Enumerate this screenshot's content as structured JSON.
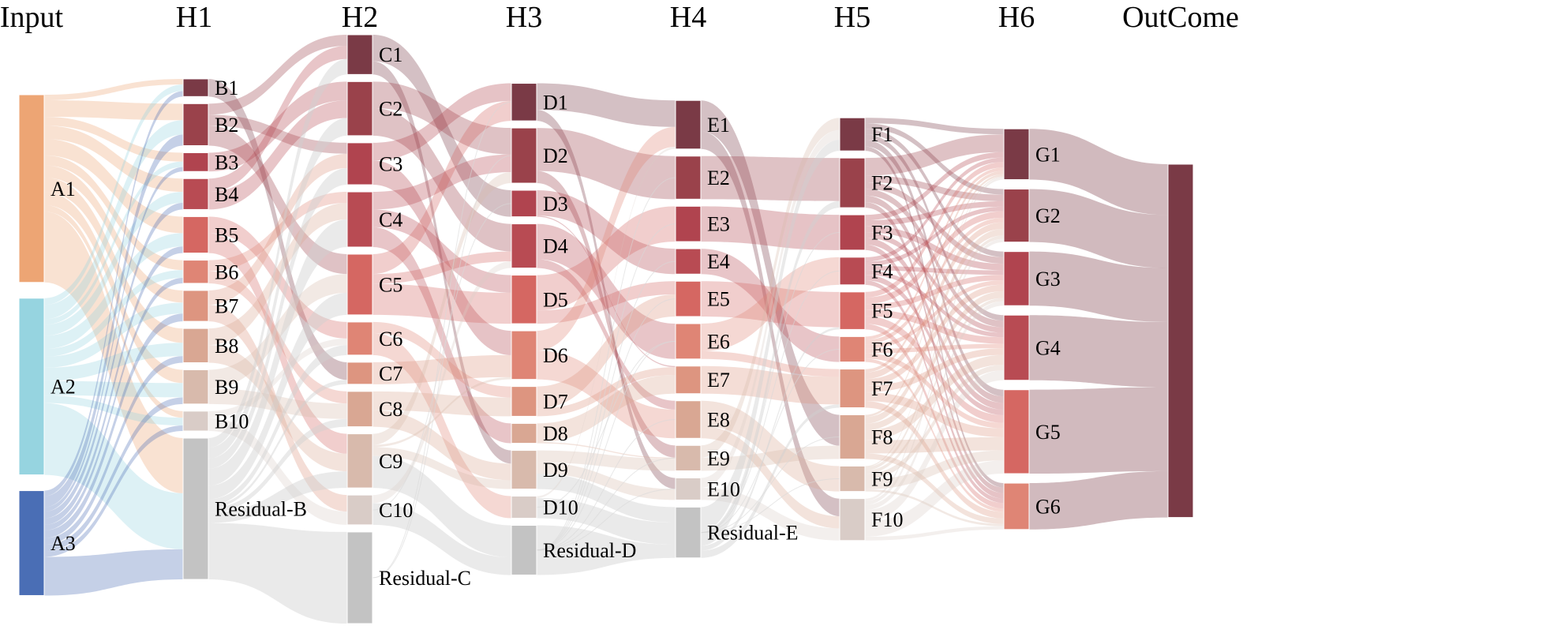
{
  "columns": [
    {
      "id": "input",
      "title": "Input",
      "nodes": [
        {
          "id": "A1",
          "label": "A1",
          "value": 17,
          "color": "#EDA574"
        },
        {
          "id": "A2",
          "label": "A2",
          "value": 16,
          "color": "#96D4E0"
        },
        {
          "id": "A3",
          "label": "A3",
          "value": 9.5,
          "color": "#4A6EB5"
        }
      ]
    },
    {
      "id": "h1",
      "title": "H1",
      "nodes": [
        {
          "id": "B1",
          "label": "B1",
          "value": 1.6,
          "color": "#7A3A46"
        },
        {
          "id": "B2",
          "label": "B2",
          "value": 3.8,
          "color": "#9A424B"
        },
        {
          "id": "B3",
          "label": "B3",
          "value": 1.7,
          "color": "#B0444F"
        },
        {
          "id": "B4",
          "label": "B4",
          "value": 2.8,
          "color": "#B84B53"
        },
        {
          "id": "B5",
          "label": "B5",
          "value": 3.3,
          "color": "#D56762"
        },
        {
          "id": "B6",
          "label": "B6",
          "value": 2.1,
          "color": "#DF8575"
        },
        {
          "id": "B7",
          "label": "B7",
          "value": 2.8,
          "color": "#DD9580"
        },
        {
          "id": "B8",
          "label": "B8",
          "value": 3.1,
          "color": "#D9A793"
        },
        {
          "id": "B9",
          "label": "B9",
          "value": 3.1,
          "color": "#D8BAAC"
        },
        {
          "id": "B10",
          "label": "B10",
          "value": 1.8,
          "color": "#D9CCC7"
        },
        {
          "id": "ResB",
          "label": "Residual-B",
          "value": 12.8,
          "color": "#C3C3C3"
        }
      ]
    },
    {
      "id": "h2",
      "title": "H2",
      "nodes": [
        {
          "id": "C1",
          "label": "C1",
          "value": 3.6,
          "color": "#7A3A46"
        },
        {
          "id": "C2",
          "label": "C2",
          "value": 4.9,
          "color": "#9A424B"
        },
        {
          "id": "C3",
          "label": "C3",
          "value": 3.8,
          "color": "#B0444F"
        },
        {
          "id": "C4",
          "label": "C4",
          "value": 5.0,
          "color": "#B84B53"
        },
        {
          "id": "C5",
          "label": "C5",
          "value": 5.5,
          "color": "#D56762"
        },
        {
          "id": "C6",
          "label": "C6",
          "value": 3.0,
          "color": "#DF8575"
        },
        {
          "id": "C7",
          "label": "C7",
          "value": 2.0,
          "color": "#DD9580"
        },
        {
          "id": "C8",
          "label": "C8",
          "value": 3.2,
          "color": "#D9A793"
        },
        {
          "id": "C9",
          "label": "C9",
          "value": 4.9,
          "color": "#D8BAAC"
        },
        {
          "id": "C10",
          "label": "C10",
          "value": 2.7,
          "color": "#D9CCC7"
        },
        {
          "id": "ResC",
          "label": "Residual-C",
          "value": 8.3,
          "color": "#C3C3C3"
        }
      ]
    },
    {
      "id": "h3",
      "title": "H3",
      "nodes": [
        {
          "id": "D1",
          "label": "D1",
          "value": 3.4,
          "color": "#7A3A46"
        },
        {
          "id": "D2",
          "label": "D2",
          "value": 5.0,
          "color": "#9A424B"
        },
        {
          "id": "D3",
          "label": "D3",
          "value": 2.4,
          "color": "#B0444F"
        },
        {
          "id": "D4",
          "label": "D4",
          "value": 4.0,
          "color": "#B84B53"
        },
        {
          "id": "D5",
          "label": "D5",
          "value": 4.4,
          "color": "#D56762"
        },
        {
          "id": "D6",
          "label": "D6",
          "value": 4.4,
          "color": "#DF8575"
        },
        {
          "id": "D7",
          "label": "D7",
          "value": 2.7,
          "color": "#DD9580"
        },
        {
          "id": "D8",
          "label": "D8",
          "value": 1.8,
          "color": "#D9A793"
        },
        {
          "id": "D9",
          "label": "D9",
          "value": 3.5,
          "color": "#D8BAAC"
        },
        {
          "id": "D10",
          "label": "D10",
          "value": 2.0,
          "color": "#D9CCC7"
        },
        {
          "id": "ResD",
          "label": "Residual-D",
          "value": 4.5,
          "color": "#C3C3C3"
        }
      ]
    },
    {
      "id": "h4",
      "title": "H4",
      "nodes": [
        {
          "id": "E1",
          "label": "E1",
          "value": 4.4,
          "color": "#7A3A46"
        },
        {
          "id": "E2",
          "label": "E2",
          "value": 3.9,
          "color": "#9A424B"
        },
        {
          "id": "E3",
          "label": "E3",
          "value": 3.2,
          "color": "#B0444F"
        },
        {
          "id": "E4",
          "label": "E4",
          "value": 2.3,
          "color": "#B84B53"
        },
        {
          "id": "E5",
          "label": "E5",
          "value": 3.2,
          "color": "#D56762"
        },
        {
          "id": "E6",
          "label": "E6",
          "value": 3.2,
          "color": "#DF8575"
        },
        {
          "id": "E7",
          "label": "E7",
          "value": 2.5,
          "color": "#DD9580"
        },
        {
          "id": "E8",
          "label": "E8",
          "value": 3.4,
          "color": "#D9A793"
        },
        {
          "id": "E9",
          "label": "E9",
          "value": 2.3,
          "color": "#D8BAAC"
        },
        {
          "id": "E10",
          "label": "E10",
          "value": 2.0,
          "color": "#D9CCC7"
        },
        {
          "id": "ResE",
          "label": "Residual-E",
          "value": 4.6,
          "color": "#C3C3C3"
        }
      ]
    },
    {
      "id": "h5",
      "title": "H5",
      "nodes": [
        {
          "id": "F1",
          "label": "F1",
          "value": 3.0,
          "color": "#7A3A46"
        },
        {
          "id": "F2",
          "label": "F2",
          "value": 4.5,
          "color": "#9A424B"
        },
        {
          "id": "F3",
          "label": "F3",
          "value": 3.2,
          "color": "#B0444F"
        },
        {
          "id": "F4",
          "label": "F4",
          "value": 2.5,
          "color": "#B84B53"
        },
        {
          "id": "F5",
          "label": "F5",
          "value": 3.4,
          "color": "#D56762"
        },
        {
          "id": "F6",
          "label": "F6",
          "value": 2.3,
          "color": "#DF8575"
        },
        {
          "id": "F7",
          "label": "F7",
          "value": 3.5,
          "color": "#DD9580"
        },
        {
          "id": "F8",
          "label": "F8",
          "value": 4.0,
          "color": "#D9A793"
        },
        {
          "id": "F9",
          "label": "F9",
          "value": 2.3,
          "color": "#D8BAAC"
        },
        {
          "id": "F10",
          "label": "F10",
          "value": 3.8,
          "color": "#D9CCC7"
        }
      ]
    },
    {
      "id": "h6",
      "title": "H6",
      "nodes": [
        {
          "id": "G1",
          "label": "G1",
          "value": 4.6,
          "color": "#7A3A46"
        },
        {
          "id": "G2",
          "label": "G2",
          "value": 4.8,
          "color": "#9A424B"
        },
        {
          "id": "G3",
          "label": "G3",
          "value": 4.9,
          "color": "#B0444F"
        },
        {
          "id": "G4",
          "label": "G4",
          "value": 5.9,
          "color": "#B84B53"
        },
        {
          "id": "G5",
          "label": "G5",
          "value": 7.6,
          "color": "#D56762"
        },
        {
          "id": "G6",
          "label": "G6",
          "value": 4.2,
          "color": "#DF8575"
        }
      ]
    },
    {
      "id": "outcome",
      "title": "OutCome",
      "nodes": [
        {
          "id": "OUT",
          "label": "",
          "value": 32,
          "color": "#7A3A46"
        }
      ]
    }
  ],
  "links": [
    [
      "A1",
      "B1",
      0.5
    ],
    [
      "A1",
      "B2",
      1.5
    ],
    [
      "A1",
      "B3",
      0.8
    ],
    [
      "A1",
      "B4",
      1.2
    ],
    [
      "A1",
      "B5",
      1.5
    ],
    [
      "A1",
      "B6",
      0.9
    ],
    [
      "A1",
      "B7",
      1.1
    ],
    [
      "A1",
      "B8",
      1.3
    ],
    [
      "A1",
      "B9",
      1.2
    ],
    [
      "A1",
      "B10",
      0.6
    ],
    [
      "A1",
      "ResB",
      6.4
    ],
    [
      "A2",
      "B1",
      0.6
    ],
    [
      "A2",
      "B2",
      1.3
    ],
    [
      "A2",
      "B3",
      0.5
    ],
    [
      "A2",
      "B4",
      1.0
    ],
    [
      "A2",
      "B5",
      1.2
    ],
    [
      "A2",
      "B6",
      0.7
    ],
    [
      "A2",
      "B7",
      1.0
    ],
    [
      "A2",
      "B8",
      1.2
    ],
    [
      "A2",
      "B9",
      1.3
    ],
    [
      "A2",
      "B10",
      0.7
    ],
    [
      "A2",
      "ResB",
      6.5
    ],
    [
      "A3",
      "B1",
      0.5
    ],
    [
      "A3",
      "B2",
      1.0
    ],
    [
      "A3",
      "B3",
      0.4
    ],
    [
      "A3",
      "B4",
      0.6
    ],
    [
      "A3",
      "B5",
      0.6
    ],
    [
      "A3",
      "B6",
      0.5
    ],
    [
      "A3",
      "B7",
      0.7
    ],
    [
      "A3",
      "B8",
      0.6
    ],
    [
      "A3",
      "B9",
      0.6
    ],
    [
      "A3",
      "B10",
      0.5
    ],
    [
      "A3",
      "ResB",
      3.5
    ],
    [
      "B1",
      "C7",
      1.6
    ],
    [
      "B2",
      "C1",
      1.0
    ],
    [
      "B2",
      "C5",
      1.8
    ],
    [
      "B2",
      "C3",
      1.0
    ],
    [
      "B3",
      "C2",
      1.7
    ],
    [
      "B4",
      "C2",
      1.6
    ],
    [
      "B4",
      "C1",
      1.2
    ],
    [
      "B5",
      "C6",
      1.5
    ],
    [
      "B5",
      "C9",
      1.8
    ],
    [
      "B6",
      "C8",
      1.1
    ],
    [
      "B6",
      "C4",
      1.0
    ],
    [
      "B7",
      "C3",
      1.3
    ],
    [
      "B7",
      "C10",
      1.5
    ],
    [
      "B8",
      "C4",
      1.5
    ],
    [
      "B8",
      "C9",
      1.6
    ],
    [
      "B9",
      "C5",
      1.7
    ],
    [
      "B9",
      "C8",
      1.4
    ],
    [
      "B10",
      "C10",
      1.2
    ],
    [
      "B10",
      "C6",
      0.6
    ],
    [
      "ResB",
      "C1",
      1.4
    ],
    [
      "ResB",
      "C2",
      1.6
    ],
    [
      "ResB",
      "C3",
      1.5
    ],
    [
      "ResB",
      "C4",
      2.5
    ],
    [
      "ResB",
      "C5",
      2.0
    ],
    [
      "ResB",
      "C6",
      0.9
    ],
    [
      "ResB",
      "C7",
      0.4
    ],
    [
      "ResB",
      "C8",
      0.7
    ],
    [
      "ResB",
      "C9",
      1.5
    ],
    [
      "ResB",
      "ResC",
      8.3
    ],
    [
      "C1",
      "D3",
      2.4
    ],
    [
      "C1",
      "D9",
      1.2
    ],
    [
      "C2",
      "D4",
      2.5
    ],
    [
      "C2",
      "D2",
      2.4
    ],
    [
      "C3",
      "D6",
      2.2
    ],
    [
      "C3",
      "D1",
      1.6
    ],
    [
      "C4",
      "D8",
      1.8
    ],
    [
      "C4",
      "D5",
      1.6
    ],
    [
      "C4",
      "D2",
      1.6
    ],
    [
      "C5",
      "D1",
      1.8
    ],
    [
      "C5",
      "D5",
      2.8
    ],
    [
      "C5",
      "D4",
      0.9
    ],
    [
      "C6",
      "D10",
      2.0
    ],
    [
      "C6",
      "D7",
      1.0
    ],
    [
      "C7",
      "D6",
      2.0
    ],
    [
      "C8",
      "D7",
      1.7
    ],
    [
      "C8",
      "D9",
      1.5
    ],
    [
      "C9",
      "D9",
      0.8
    ],
    [
      "C9",
      "D6",
      0.2
    ],
    [
      "C9",
      "D2",
      1.0
    ],
    [
      "C9",
      "ResD",
      2.9
    ],
    [
      "C10",
      "D4",
      0.6
    ],
    [
      "C10",
      "ResD",
      1.6
    ],
    [
      "C10",
      "D3",
      0.0
    ],
    [
      "ResC",
      "D1",
      0.0
    ],
    [
      "ResC",
      "D2",
      0.0
    ],
    [
      "D1",
      "E1",
      2.4
    ],
    [
      "D1",
      "E10",
      1.0
    ],
    [
      "D2",
      "E2",
      3.9
    ],
    [
      "D2",
      "E9",
      1.1
    ],
    [
      "D3",
      "E4",
      2.3
    ],
    [
      "D3",
      "E7",
      0.1
    ],
    [
      "D4",
      "E6",
      3.2
    ],
    [
      "D4",
      "E8",
      0.8
    ],
    [
      "D5",
      "E3",
      3.2
    ],
    [
      "D5",
      "E5",
      1.2
    ],
    [
      "D6",
      "E8",
      2.6
    ],
    [
      "D6",
      "E1",
      1.8
    ],
    [
      "D7",
      "E5",
      2.0
    ],
    [
      "D7",
      "E7",
      0.7
    ],
    [
      "D8",
      "E7",
      1.7
    ],
    [
      "D8",
      "E9",
      0.1
    ],
    [
      "D9",
      "E10",
      1.0
    ],
    [
      "D9",
      "E9",
      1.1
    ],
    [
      "D9",
      "ResE",
      1.4
    ],
    [
      "D10",
      "ResE",
      2.0
    ],
    [
      "D10",
      "E1",
      0.2
    ],
    [
      "D10",
      "E6",
      0.0
    ],
    [
      "ResD",
      "ResE",
      1.2
    ],
    [
      "ResD",
      "E3",
      0.0
    ],
    [
      "ResD",
      "E5",
      0.0
    ],
    [
      "ResD",
      "E2",
      0.0
    ],
    [
      "ResD",
      "E10",
      0.0
    ],
    [
      "ResD",
      "E4",
      0.0
    ],
    [
      "ResD",
      "E6",
      0.0
    ],
    [
      "ResD",
      "E8",
      0.0
    ],
    [
      "ResD",
      "E9",
      0.0
    ],
    [
      "E1",
      "F8",
      2.8
    ],
    [
      "E1",
      "F10",
      1.6
    ],
    [
      "E2",
      "F2",
      3.9
    ],
    [
      "E3",
      "F3",
      3.2
    ],
    [
      "E4",
      "F6",
      2.3
    ],
    [
      "E5",
      "F5",
      3.2
    ],
    [
      "E6",
      "F4",
      2.5
    ],
    [
      "E6",
      "F7",
      0.7
    ],
    [
      "E7",
      "F7",
      2.5
    ],
    [
      "E8",
      "F9",
      2.3
    ],
    [
      "E8",
      "F10",
      1.1
    ],
    [
      "E9",
      "F8",
      1.2
    ],
    [
      "E9",
      "F1",
      1.1
    ],
    [
      "E10",
      "F10",
      1.1
    ],
    [
      "E10",
      "F1",
      0.9
    ],
    [
      "ResE",
      "F1",
      1.0
    ],
    [
      "ResE",
      "F2",
      0.6
    ],
    [
      "ResE",
      "F5",
      0.2
    ],
    [
      "ResE",
      "F7",
      0.3
    ],
    [
      "ResE",
      "F9",
      0.0
    ],
    [
      "ResE",
      "F6",
      0.0
    ],
    [
      "ResE",
      "F3",
      0.0
    ],
    [
      "ResE",
      "F4",
      0.0
    ],
    [
      "ResE",
      "F8",
      0.0
    ],
    [
      "F1",
      "G1",
      0.5
    ],
    [
      "F1",
      "G2",
      0.5
    ],
    [
      "F1",
      "G3",
      0.5
    ],
    [
      "F1",
      "G4",
      0.5
    ],
    [
      "F1",
      "G5",
      0.6
    ],
    [
      "F1",
      "G6",
      0.4
    ],
    [
      "F2",
      "G1",
      1.6
    ],
    [
      "F2",
      "G2",
      0.6
    ],
    [
      "F2",
      "G3",
      0.6
    ],
    [
      "F2",
      "G4",
      0.6
    ],
    [
      "F2",
      "G5",
      0.6
    ],
    [
      "F2",
      "G6",
      0.5
    ],
    [
      "F3",
      "G1",
      0.5
    ],
    [
      "F3",
      "G2",
      0.5
    ],
    [
      "F3",
      "G3",
      0.6
    ],
    [
      "F3",
      "G4",
      0.5
    ],
    [
      "F3",
      "G5",
      0.6
    ],
    [
      "F3",
      "G6",
      0.5
    ],
    [
      "F4",
      "G1",
      0.4
    ],
    [
      "F4",
      "G2",
      0.4
    ],
    [
      "F4",
      "G3",
      0.4
    ],
    [
      "F4",
      "G4",
      0.4
    ],
    [
      "F4",
      "G5",
      0.5
    ],
    [
      "F4",
      "G6",
      0.4
    ],
    [
      "F5",
      "G1",
      0.5
    ],
    [
      "F5",
      "G2",
      0.6
    ],
    [
      "F5",
      "G3",
      0.5
    ],
    [
      "F5",
      "G4",
      0.6
    ],
    [
      "F5",
      "G5",
      0.7
    ],
    [
      "F5",
      "G6",
      0.5
    ],
    [
      "F6",
      "G1",
      0.3
    ],
    [
      "F6",
      "G2",
      0.4
    ],
    [
      "F6",
      "G3",
      0.4
    ],
    [
      "F6",
      "G4",
      0.4
    ],
    [
      "F6",
      "G5",
      0.5
    ],
    [
      "F6",
      "G6",
      0.3
    ],
    [
      "F7",
      "G1",
      0.3
    ],
    [
      "F7",
      "G2",
      0.6
    ],
    [
      "F7",
      "G3",
      0.6
    ],
    [
      "F7",
      "G4",
      0.6
    ],
    [
      "F7",
      "G5",
      0.8
    ],
    [
      "F7",
      "G6",
      0.6
    ],
    [
      "F8",
      "G1",
      0.2
    ],
    [
      "F8",
      "G2",
      0.6
    ],
    [
      "F8",
      "G3",
      0.6
    ],
    [
      "F8",
      "G4",
      0.9
    ],
    [
      "F8",
      "G5",
      1.2
    ],
    [
      "F8",
      "G6",
      0.5
    ],
    [
      "F9",
      "G1",
      0.1
    ],
    [
      "F9",
      "G2",
      0.3
    ],
    [
      "F9",
      "G3",
      0.3
    ],
    [
      "F9",
      "G4",
      0.5
    ],
    [
      "F9",
      "G5",
      0.9
    ],
    [
      "F9",
      "G6",
      0.2
    ],
    [
      "F10",
      "G1",
      0.2
    ],
    [
      "F10",
      "G2",
      0.3
    ],
    [
      "F10",
      "G3",
      0.4
    ],
    [
      "F10",
      "G4",
      0.9
    ],
    [
      "F10",
      "G5",
      1.2
    ],
    [
      "F10",
      "G6",
      0.3
    ],
    [
      "G1",
      "OUT",
      4.6
    ],
    [
      "G2",
      "OUT",
      4.8
    ],
    [
      "G3",
      "OUT",
      4.9
    ],
    [
      "G4",
      "OUT",
      5.9
    ],
    [
      "G5",
      "OUT",
      7.6
    ],
    [
      "G6",
      "OUT",
      4.2
    ]
  ]
}
